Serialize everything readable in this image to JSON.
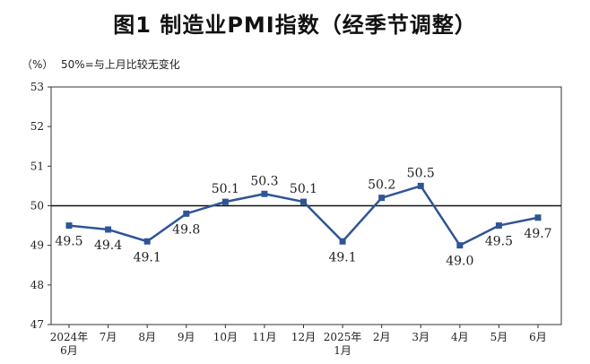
{
  "title": "图1 制造业PMI指数（经季节调整）",
  "unit_label": "（%）",
  "note": "50%=与上月比较无变化",
  "chart_data": {
    "type": "line",
    "title": "图1 制造业PMI指数（经季节调整）",
    "ylabel": "（%）",
    "xlabel": "",
    "ylim": [
      47,
      53
    ],
    "yticks": [
      47,
      48,
      49,
      50,
      51,
      52,
      53
    ],
    "reference_line": 50,
    "grid": false,
    "categories": [
      [
        "2024年",
        "6月"
      ],
      [
        "7月"
      ],
      [
        "8月"
      ],
      [
        "9月"
      ],
      [
        "10月"
      ],
      [
        "11月"
      ],
      [
        "12月"
      ],
      [
        "2025年",
        "1月"
      ],
      [
        "2月"
      ],
      [
        "3月"
      ],
      [
        "4月"
      ],
      [
        "5月"
      ],
      [
        "6月"
      ]
    ],
    "series": [
      {
        "color": "#2f5597",
        "values": [
          49.5,
          49.4,
          49.1,
          49.8,
          50.1,
          50.3,
          50.1,
          49.1,
          50.2,
          50.5,
          49.0,
          49.5,
          49.7
        ],
        "labels": [
          "49.5",
          "49.4",
          "49.1",
          "49.8",
          "50.1",
          "50.3",
          "50.1",
          "49.1",
          "50.2",
          "50.5",
          "49.0",
          "49.5",
          "49.7"
        ]
      }
    ]
  }
}
